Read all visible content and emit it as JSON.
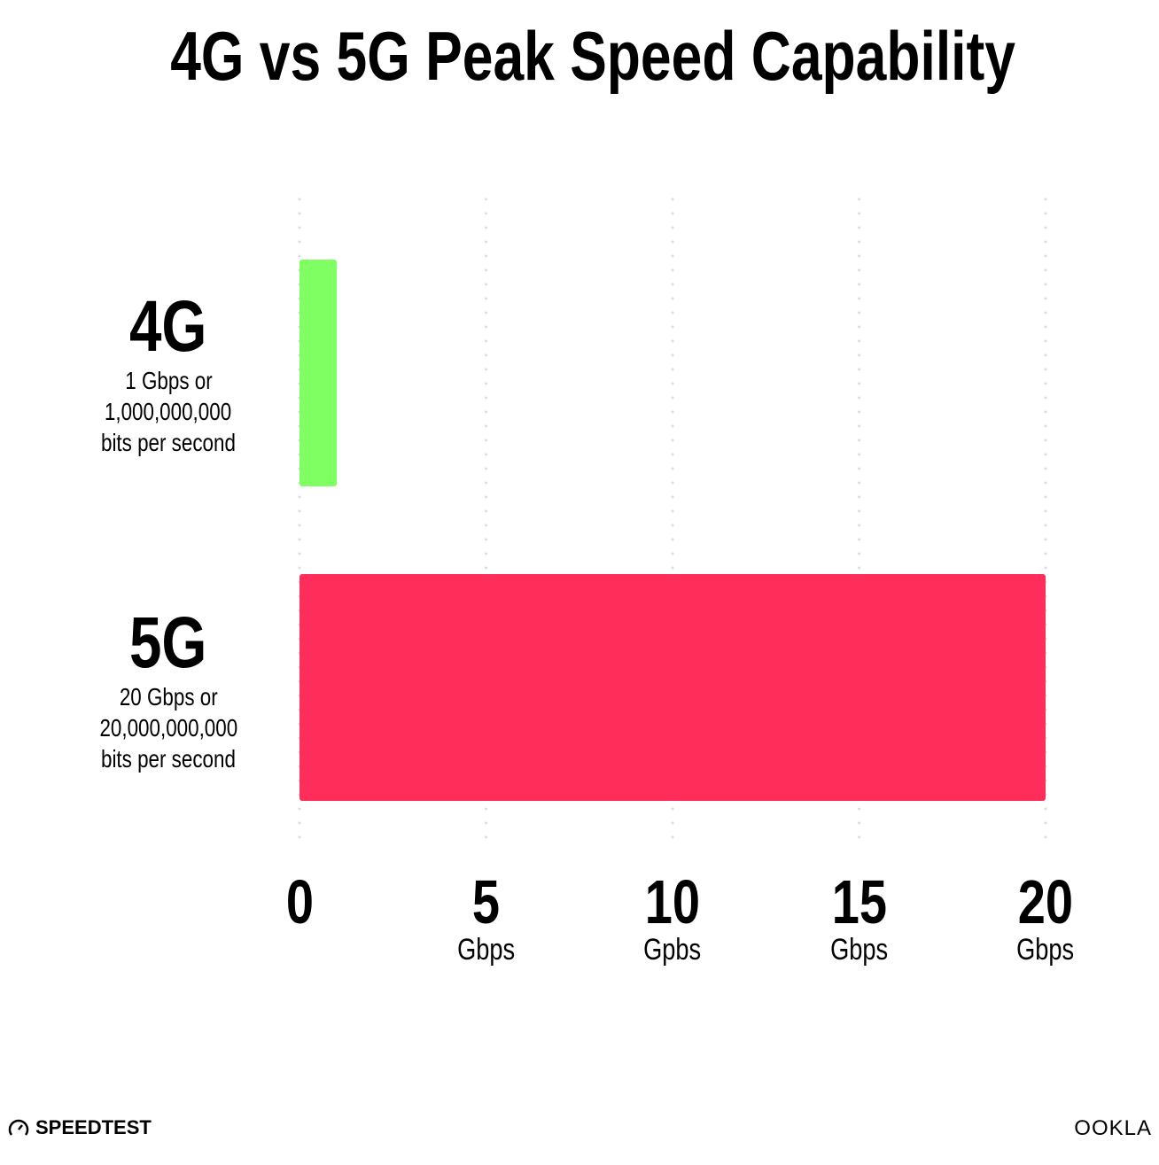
{
  "chart_data": {
    "type": "bar",
    "orientation": "horizontal",
    "title": "4G vs 5G Peak Speed Capability",
    "categories": [
      "4G",
      "5G"
    ],
    "category_notes": [
      [
        "1 Gbps or",
        "1,000,000,000",
        "bits per second"
      ],
      [
        "20 Gbps or",
        "20,000,000,000",
        "bits per second"
      ]
    ],
    "values": [
      1,
      20
    ],
    "colors": [
      "#80ff62",
      "#ff2d5a"
    ],
    "xlim": [
      0,
      20
    ],
    "xticks": [
      {
        "value": 0,
        "label": "0",
        "unit": ""
      },
      {
        "value": 5,
        "label": "5",
        "unit": "Gbps"
      },
      {
        "value": 10,
        "label": "10",
        "unit": "Gpbs"
      },
      {
        "value": 15,
        "label": "15",
        "unit": "Gbps"
      },
      {
        "value": 20,
        "label": "20",
        "unit": "Gbps"
      }
    ],
    "grid": true,
    "grid_style": "dotted vertical"
  },
  "branding": {
    "left_logo": "SPEEDTEST",
    "right_logo": "OOKLA"
  }
}
